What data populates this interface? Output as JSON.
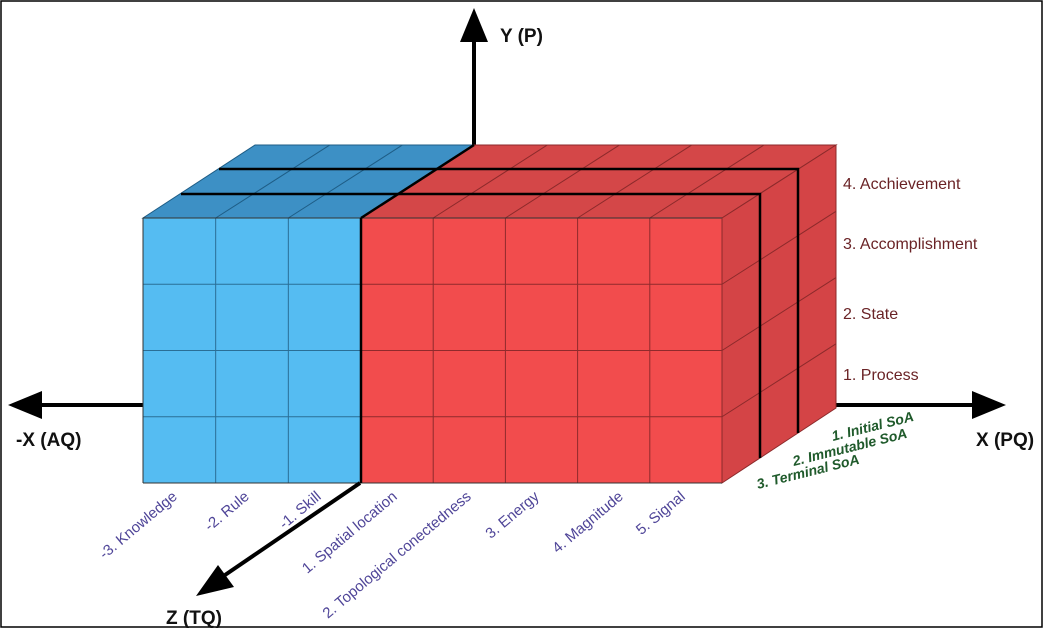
{
  "axes": {
    "y": "Y (P)",
    "neg_x": "-X (AQ)",
    "x": "X (PQ)",
    "z": "Z (TQ)"
  },
  "levels": [
    "4. Acchievement",
    "3. Accomplishment",
    "2. State",
    "1. Process"
  ],
  "blue_qualities": [
    "-3. Knowledge",
    "-2. Rule",
    "-1. Skill"
  ],
  "red_qualities": [
    "1. Spatial location",
    "2. Topological conectedness",
    "3. Energy",
    "4. Magnitude",
    "5. Signal"
  ],
  "soa_levels": [
    "1. Initial SoA",
    "2. Immutable SoA",
    "3. Terminal SoA"
  ],
  "colors": {
    "blue_front": "#55bcf2",
    "blue_top": "#3d90c5",
    "red_front": "#f24c4d",
    "red_side": "#d44446",
    "red_top": "#d44748",
    "level_text": "#6a2326",
    "quality_text": "#4f4598",
    "soa_text": "#1f5a2b"
  }
}
